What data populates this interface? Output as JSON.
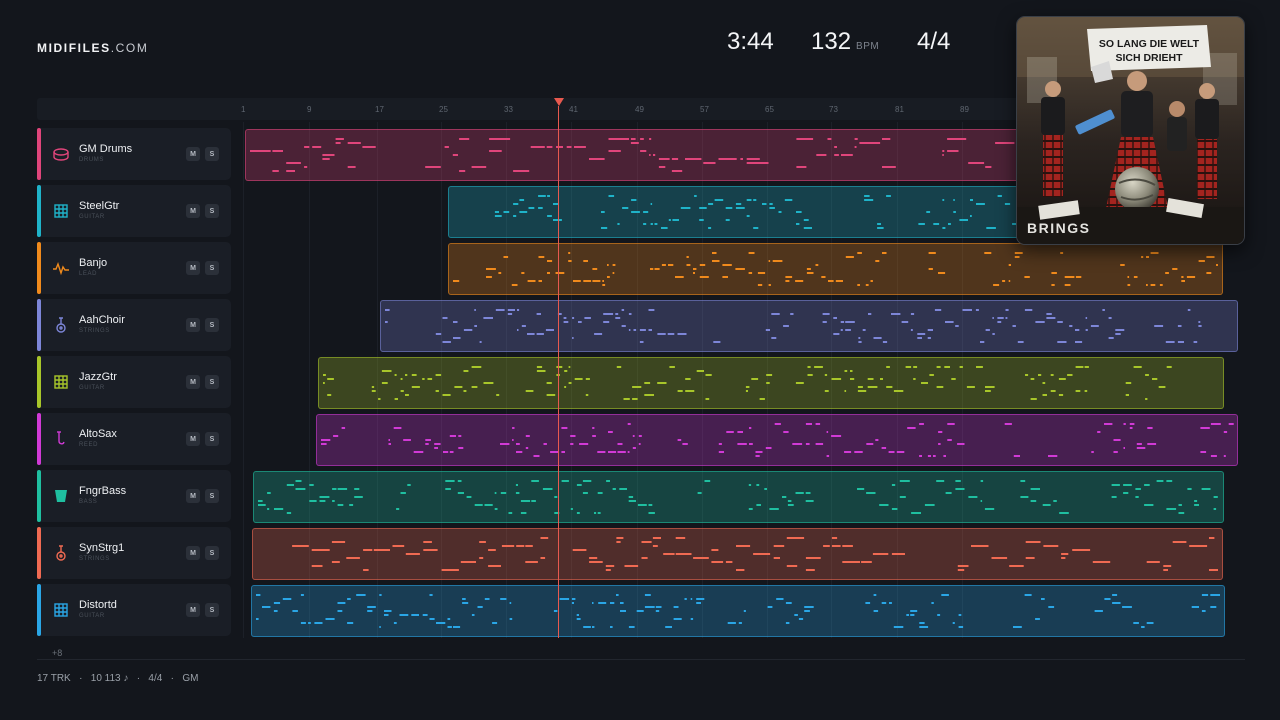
{
  "brand": {
    "bold": "MIDIFILES",
    "light": ".COM"
  },
  "transport": {
    "time": "3:44",
    "tempo": "132",
    "tempo_unit": "BPM",
    "meter": "4/4"
  },
  "ruler": {
    "ticks": [
      "1",
      "9",
      "17",
      "25",
      "33",
      "41",
      "49",
      "57",
      "65",
      "73",
      "81",
      "89"
    ]
  },
  "tracks": [
    {
      "name": "GM Drums",
      "role": "DRUMS",
      "color": "#e0457b",
      "icon": "drum-icon"
    },
    {
      "name": "SteelGtr",
      "role": "GUITAR",
      "color": "#1fb3c9",
      "icon": "fretboard-icon"
    },
    {
      "name": "Banjo",
      "role": "LEAD",
      "color": "#f08a1c",
      "icon": "waveform-icon"
    },
    {
      "name": "AahChoir",
      "role": "STRINGS",
      "color": "#7d86d8",
      "icon": "guitar-icon"
    },
    {
      "name": "JazzGtr",
      "role": "GUITAR",
      "color": "#a8c62a",
      "icon": "fretboard-icon"
    },
    {
      "name": "AltoSax",
      "role": "REED",
      "color": "#d13ad6",
      "icon": "saxophone-icon"
    },
    {
      "name": "FngrBass",
      "role": "BASS",
      "color": "#1fbfa0",
      "icon": "bass-icon"
    },
    {
      "name": "SynStrg1",
      "role": "STRINGS",
      "color": "#f06a52",
      "icon": "guitar-icon"
    },
    {
      "name": "Distortd",
      "role": "GUITAR",
      "color": "#2aa6e6",
      "icon": "fretboard-icon"
    }
  ],
  "track_buttons": {
    "mute": "M",
    "solo": "S"
  },
  "more_tracks": "+8",
  "footer": {
    "tracks": "17 TRK",
    "sep": "·",
    "notes": "10 113 ♪",
    "meter": "4/4",
    "standard": "GM"
  },
  "album": {
    "banner": "SO LANG DIE WELT SICH DRIEHT",
    "band": "BRINGS"
  }
}
